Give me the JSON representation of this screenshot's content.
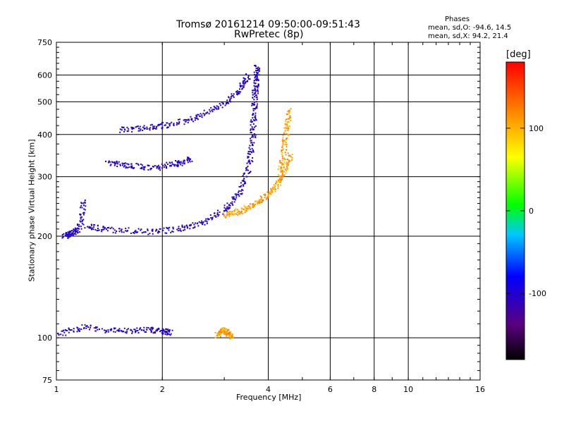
{
  "chart_data": {
    "type": "scatter",
    "title": "Tromsø 20161214 09:50:00-09:51:43",
    "subtitle": "RwPretec (8p)",
    "xlabel": "Frequency [MHz]",
    "ylabel": "Stationary phase Virtual Height [km]",
    "x_scale": "log",
    "y_scale": "log",
    "xlim": [
      1,
      16
    ],
    "ylim": [
      75,
      750
    ],
    "x_ticks": [
      1,
      2,
      4,
      6,
      8,
      10,
      16
    ],
    "y_ticks": [
      75,
      100,
      200,
      300,
      400,
      500,
      600,
      750
    ],
    "grid": true,
    "phase_stats": {
      "heading": "Phases",
      "o_line": "mean, sd,O: -94.6, 14.5",
      "x_line": "mean, sd,X:  94.2, 21.4"
    },
    "colorbar": {
      "label": "[deg]",
      "range": [
        -180,
        180
      ],
      "ticks": [
        100,
        0,
        -100
      ],
      "colormap": [
        "#000000",
        "#5a0080",
        "#0000ff",
        "#00c8ff",
        "#00ff00",
        "#ffff00",
        "#ff8000",
        "#ff0000"
      ]
    },
    "series": [
      {
        "phase": -100,
        "segments": [
          {
            "x": [
              1.0,
              1.2,
              1.5,
              1.8,
              2.0,
              2.1
            ],
            "y": [
              103,
              108,
              105,
              106,
              105,
              104
            ]
          },
          {
            "x": [
              1.05,
              1.1,
              1.15,
              1.2
            ],
            "y": [
              200,
              205,
              210,
              260
            ]
          },
          {
            "x": [
              1.2,
              1.4,
              1.8,
              2.2,
              2.6,
              3.0,
              3.3,
              3.5,
              3.6
            ],
            "y": [
              215,
              210,
              207,
              210,
              220,
              240,
              270,
              320,
              380
            ]
          },
          {
            "x": [
              3.6,
              3.62,
              3.65,
              3.68,
              3.7
            ],
            "y": [
              380,
              450,
              520,
              580,
              640
            ]
          },
          {
            "x": [
              1.5,
              1.8,
              2.1,
              2.5,
              2.9,
              3.3,
              3.5
            ],
            "y": [
              415,
              420,
              430,
              450,
              490,
              540,
              600
            ]
          },
          {
            "x": [
              1.4,
              1.6,
              1.9,
              2.2,
              2.4
            ],
            "y": [
              330,
              325,
              320,
              330,
              340
            ]
          }
        ]
      },
      {
        "phase": 110,
        "segments": [
          {
            "x": [
              3.0,
              3.3,
              3.6,
              3.9,
              4.2,
              4.4,
              4.6
            ],
            "y": [
              232,
              238,
              248,
              262,
              280,
              310,
              350
            ]
          },
          {
            "x": [
              4.3,
              4.4,
              4.5,
              4.6
            ],
            "y": [
              300,
              360,
              420,
              480
            ]
          },
          {
            "x": [
              2.85,
              2.95,
              3.05,
              3.15
            ],
            "y": [
              102,
              106,
              104,
              101
            ]
          }
        ]
      }
    ]
  }
}
